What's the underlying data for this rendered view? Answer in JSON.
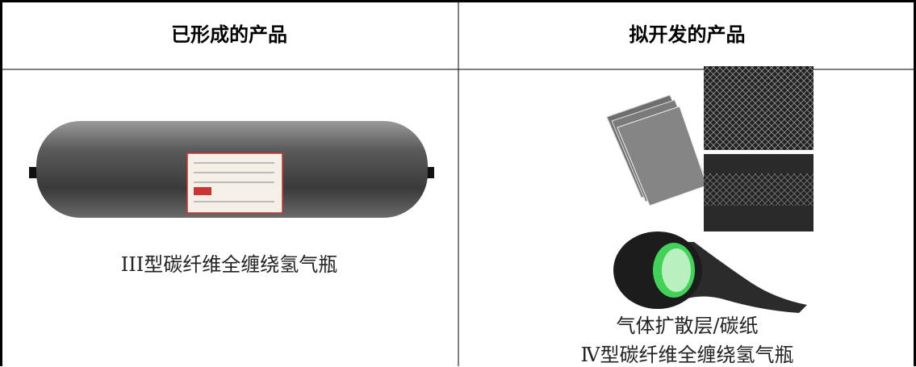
{
  "table": {
    "headers": [
      "已形成的产品",
      "拟开发的产品"
    ],
    "rows": [
      [
        "III型碳纤维全缠绕氢气瓶",
        [
          "气体扩散层/碳纸",
          "Ⅳ型碳纤维全缠绕氢气瓶"
        ]
      ]
    ]
  }
}
